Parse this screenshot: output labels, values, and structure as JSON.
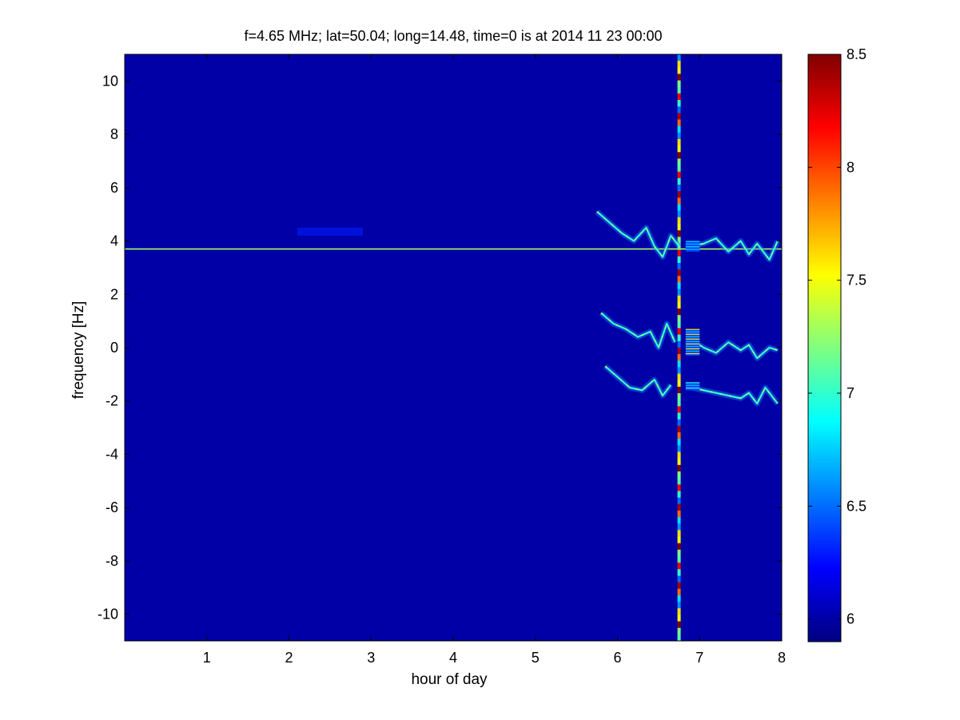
{
  "chart_data": {
    "type": "heatmap",
    "title": "f=4.65 MHz;  lat=50.04; long=14.48, time=0 is at 2014 11 23 00:00",
    "xlabel": "hour of day",
    "ylabel": "frequency [Hz]",
    "xlim": [
      0,
      8
    ],
    "ylim": [
      -11,
      11
    ],
    "xticks": [
      1,
      2,
      3,
      4,
      5,
      6,
      7,
      8
    ],
    "yticks": [
      -10,
      -8,
      -6,
      -4,
      -2,
      0,
      2,
      4,
      6,
      8,
      10
    ],
    "colorbar": {
      "colormap": "jet",
      "clim": [
        5.9,
        8.5
      ],
      "ticks": [
        6,
        6.5,
        7,
        7.5,
        8,
        8.5
      ]
    },
    "background_value": 6.0,
    "features": [
      {
        "kind": "horizontal_line",
        "y": 3.7,
        "x_range": [
          0,
          8
        ],
        "value": 7.3
      },
      {
        "kind": "vertical_line",
        "x": 6.75,
        "y_range": [
          -11,
          11
        ],
        "value": "mixed 6.5-8.5"
      },
      {
        "kind": "trace",
        "value": 7.0,
        "points": [
          [
            5.75,
            5.1
          ],
          [
            5.9,
            4.7
          ],
          [
            6.05,
            4.3
          ],
          [
            6.2,
            4.0
          ],
          [
            6.35,
            4.5
          ],
          [
            6.45,
            3.8
          ],
          [
            6.55,
            3.4
          ],
          [
            6.65,
            4.2
          ],
          [
            6.75,
            3.8
          ]
        ]
      },
      {
        "kind": "trace",
        "value": 7.0,
        "points": [
          [
            6.9,
            3.8
          ],
          [
            7.05,
            3.9
          ],
          [
            7.2,
            4.1
          ],
          [
            7.35,
            3.6
          ],
          [
            7.5,
            4.0
          ],
          [
            7.6,
            3.5
          ],
          [
            7.7,
            3.9
          ],
          [
            7.85,
            3.3
          ],
          [
            7.95,
            4.0
          ]
        ]
      },
      {
        "kind": "trace",
        "value": 7.0,
        "points": [
          [
            5.8,
            1.3
          ],
          [
            5.95,
            0.9
          ],
          [
            6.1,
            0.7
          ],
          [
            6.25,
            0.4
          ],
          [
            6.4,
            0.6
          ],
          [
            6.5,
            0.0
          ],
          [
            6.6,
            0.9
          ],
          [
            6.7,
            0.2
          ]
        ]
      },
      {
        "kind": "trace",
        "value": 7.0,
        "points": [
          [
            6.9,
            0.3
          ],
          [
            7.05,
            0.0
          ],
          [
            7.2,
            -0.2
          ],
          [
            7.35,
            0.2
          ],
          [
            7.5,
            -0.1
          ],
          [
            7.6,
            0.1
          ],
          [
            7.7,
            -0.4
          ],
          [
            7.85,
            0.0
          ],
          [
            7.95,
            -0.1
          ]
        ]
      },
      {
        "kind": "trace",
        "value": 7.0,
        "points": [
          [
            5.85,
            -0.7
          ],
          [
            6.0,
            -1.1
          ],
          [
            6.15,
            -1.5
          ],
          [
            6.3,
            -1.6
          ],
          [
            6.45,
            -1.2
          ],
          [
            6.55,
            -1.8
          ],
          [
            6.65,
            -1.4
          ]
        ]
      },
      {
        "kind": "trace",
        "value": 7.0,
        "points": [
          [
            6.9,
            -1.5
          ],
          [
            7.05,
            -1.6
          ],
          [
            7.2,
            -1.7
          ],
          [
            7.35,
            -1.8
          ],
          [
            7.5,
            -1.9
          ],
          [
            7.6,
            -1.7
          ],
          [
            7.7,
            -2.1
          ],
          [
            7.8,
            -1.5
          ],
          [
            7.95,
            -2.1
          ]
        ]
      },
      {
        "kind": "block",
        "x_range": [
          6.83,
          7.0
        ],
        "y_range": [
          -0.3,
          0.7
        ],
        "value": 7.6
      },
      {
        "kind": "block",
        "x_range": [
          6.83,
          7.0
        ],
        "y_range": [
          3.6,
          4.0
        ],
        "value": 6.8
      },
      {
        "kind": "block",
        "x_range": [
          6.83,
          7.0
        ],
        "y_range": [
          -1.6,
          -1.3
        ],
        "value": 7.0
      },
      {
        "kind": "faint_patch",
        "x_range": [
          2.1,
          2.9
        ],
        "y_range": [
          4.2,
          4.5
        ],
        "value": 6.3
      }
    ]
  }
}
